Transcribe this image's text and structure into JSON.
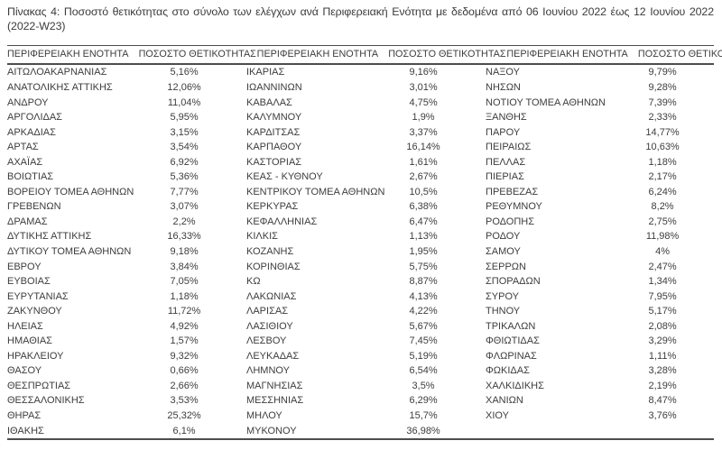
{
  "title": "Πίνακας 4: Ποσοστό θετικότητας στο σύνολο των ελέγχων ανά Περιφερειακή Ενότητα με δεδομένα από 06 Ιουνίου 2022 έως 12 Ιουνίου 2022 (2022-W23)",
  "table": {
    "header": {
      "region": "ΠΕΡΙΦΕΡΕΙΑΚΗ ΕΝΟΤΗΤΑ",
      "rate": "ΠΟΣΟΣΤΟ ΘΕΤΙΚΟΤΗΤΑΣ"
    },
    "groups": [
      {
        "rows": [
          {
            "region": "ΑΙΤΩΛΟΑΚΑΡΝΑΝΙΑΣ",
            "rate": "5,16%"
          },
          {
            "region": "ΑΝΑΤΟΛΙΚΗΣ ΑΤΤΙΚΗΣ",
            "rate": "12,06%"
          },
          {
            "region": "ΑΝΔΡΟΥ",
            "rate": "11,04%"
          },
          {
            "region": "ΑΡΓΟΛΙΔΑΣ",
            "rate": "5,95%"
          },
          {
            "region": "ΑΡΚΑΔΙΑΣ",
            "rate": "3,15%"
          },
          {
            "region": "ΑΡΤΑΣ",
            "rate": "3,54%"
          },
          {
            "region": "ΑΧΑΪΑΣ",
            "rate": "6,92%"
          },
          {
            "region": "ΒΟΙΩΤΙΑΣ",
            "rate": "5,36%"
          },
          {
            "region": "ΒΟΡΕΙΟΥ ΤΟΜΕΑ ΑΘΗΝΩΝ",
            "rate": "7,77%"
          },
          {
            "region": "ΓΡΕΒΕΝΩΝ",
            "rate": "3,07%"
          },
          {
            "region": "ΔΡΑΜΑΣ",
            "rate": "2,2%"
          },
          {
            "region": "ΔΥΤΙΚΗΣ ΑΤΤΙΚΗΣ",
            "rate": "16,33%"
          },
          {
            "region": "ΔΥΤΙΚΟΥ ΤΟΜΕΑ ΑΘΗΝΩΝ",
            "rate": "9,18%"
          },
          {
            "region": "ΕΒΡΟΥ",
            "rate": "3,84%"
          },
          {
            "region": "ΕΥΒΟΙΑΣ",
            "rate": "7,05%"
          },
          {
            "region": "ΕΥΡΥΤΑΝΙΑΣ",
            "rate": "1,18%"
          },
          {
            "region": "ΖΑΚΥΝΘΟΥ",
            "rate": "11,72%"
          },
          {
            "region": "ΗΛΕΙΑΣ",
            "rate": "4,92%"
          },
          {
            "region": "ΗΜΑΘΙΑΣ",
            "rate": "1,57%"
          },
          {
            "region": "ΗΡΑΚΛΕΙΟΥ",
            "rate": "9,32%"
          },
          {
            "region": "ΘΑΣΟΥ",
            "rate": "0,66%"
          },
          {
            "region": "ΘΕΣΠΡΩΤΙΑΣ",
            "rate": "2,66%"
          },
          {
            "region": "ΘΕΣΣΑΛΟΝΙΚΗΣ",
            "rate": "3,53%"
          },
          {
            "region": "ΘΗΡΑΣ",
            "rate": "25,32%"
          },
          {
            "region": "ΙΘΑΚΗΣ",
            "rate": "6,1%"
          }
        ]
      },
      {
        "rows": [
          {
            "region": "ΙΚΑΡΙΑΣ",
            "rate": "9,16%"
          },
          {
            "region": "ΙΩΑΝΝΙΝΩΝ",
            "rate": "3,01%"
          },
          {
            "region": "ΚΑΒΑΛΑΣ",
            "rate": "4,75%"
          },
          {
            "region": "ΚΑΛΥΜΝΟΥ",
            "rate": "1,9%"
          },
          {
            "region": "ΚΑΡΔΙΤΣΑΣ",
            "rate": "3,37%"
          },
          {
            "region": "ΚΑΡΠΑΘΟΥ",
            "rate": "16,14%"
          },
          {
            "region": "ΚΑΣΤΟΡΙΑΣ",
            "rate": "1,61%"
          },
          {
            "region": "ΚΕΑΣ - ΚΥΘΝΟΥ",
            "rate": "2,67%"
          },
          {
            "region": "ΚΕΝΤΡΙΚΟΥ ΤΟΜΕΑ ΑΘΗΝΩΝ",
            "rate": "10,5%"
          },
          {
            "region": "ΚΕΡΚΥΡΑΣ",
            "rate": "6,38%"
          },
          {
            "region": "ΚΕΦΑΛΛΗΝΙΑΣ",
            "rate": "6,47%"
          },
          {
            "region": "ΚΙΛΚΙΣ",
            "rate": "1,13%"
          },
          {
            "region": "ΚΟΖΑΝΗΣ",
            "rate": "1,95%"
          },
          {
            "region": "ΚΟΡΙΝΘΙΑΣ",
            "rate": "5,75%"
          },
          {
            "region": "ΚΩ",
            "rate": "8,87%"
          },
          {
            "region": "ΛΑΚΩΝΙΑΣ",
            "rate": "4,13%"
          },
          {
            "region": "ΛΑΡΙΣΑΣ",
            "rate": "4,22%"
          },
          {
            "region": "ΛΑΣΙΘΙΟΥ",
            "rate": "5,67%"
          },
          {
            "region": "ΛΕΣΒΟΥ",
            "rate": "7,45%"
          },
          {
            "region": "ΛΕΥΚΑΔΑΣ",
            "rate": "5,19%"
          },
          {
            "region": "ΛΗΜΝΟΥ",
            "rate": "6,54%"
          },
          {
            "region": "ΜΑΓΝΗΣΙΑΣ",
            "rate": "3,5%"
          },
          {
            "region": "ΜΕΣΣΗΝΙΑΣ",
            "rate": "6,29%"
          },
          {
            "region": "ΜΗΛΟΥ",
            "rate": "15,7%"
          },
          {
            "region": "ΜΥΚΟΝΟΥ",
            "rate": "36,98%"
          }
        ]
      },
      {
        "rows": [
          {
            "region": "ΝΑΞΟΥ",
            "rate": "9,79%"
          },
          {
            "region": "ΝΗΣΩΝ",
            "rate": "9,28%"
          },
          {
            "region": "ΝΟΤΙΟΥ ΤΟΜΕΑ ΑΘΗΝΩΝ",
            "rate": "7,39%"
          },
          {
            "region": "ΞΑΝΘΗΣ",
            "rate": "2,33%"
          },
          {
            "region": "ΠΑΡΟΥ",
            "rate": "14,77%"
          },
          {
            "region": "ΠΕΙΡΑΙΩΣ",
            "rate": "10,63%"
          },
          {
            "region": "ΠΕΛΛΑΣ",
            "rate": "1,18%"
          },
          {
            "region": "ΠΙΕΡΙΑΣ",
            "rate": "2,17%"
          },
          {
            "region": "ΠΡΕΒΕΖΑΣ",
            "rate": "6,24%"
          },
          {
            "region": "ΡΕΘΥΜΝΟΥ",
            "rate": "8,2%"
          },
          {
            "region": "ΡΟΔΟΠΗΣ",
            "rate": "2,75%"
          },
          {
            "region": "ΡΟΔΟΥ",
            "rate": "11,98%"
          },
          {
            "region": "ΣΑΜΟΥ",
            "rate": "4%"
          },
          {
            "region": "ΣΕΡΡΩΝ",
            "rate": "2,47%"
          },
          {
            "region": "ΣΠΟΡΑΔΩΝ",
            "rate": "1,34%"
          },
          {
            "region": "ΣΥΡΟΥ",
            "rate": "7,95%"
          },
          {
            "region": "ΤΗΝΟΥ",
            "rate": "5,17%"
          },
          {
            "region": "ΤΡΙΚΑΛΩΝ",
            "rate": "2,08%"
          },
          {
            "region": "ΦΘΙΩΤΙΔΑΣ",
            "rate": "3,29%"
          },
          {
            "region": "ΦΛΩΡΙΝΑΣ",
            "rate": "1,11%"
          },
          {
            "region": "ΦΩΚΙΔΑΣ",
            "rate": "3,28%"
          },
          {
            "region": "ΧΑΛΚΙΔΙΚΗΣ",
            "rate": "2,19%"
          },
          {
            "region": "ΧΑΝΙΩΝ",
            "rate": "8,47%"
          },
          {
            "region": "ΧΙΟΥ",
            "rate": "3,76%"
          }
        ]
      }
    ]
  }
}
